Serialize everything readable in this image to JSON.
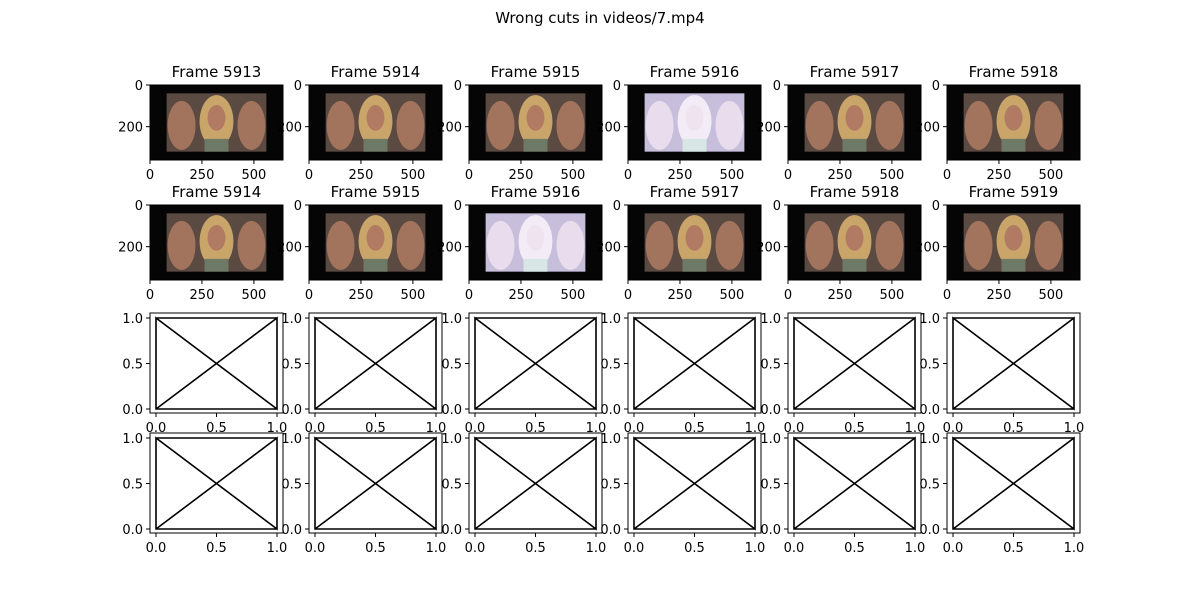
{
  "chart_data": {
    "type": "image-grid",
    "title": "Wrong cuts in videos/7.mp4",
    "rows": [
      {
        "kind": "image",
        "frames": [
          {
            "title": "Frame 5913",
            "tint": "normal"
          },
          {
            "title": "Frame 5914",
            "tint": "normal"
          },
          {
            "title": "Frame 5915",
            "tint": "normal"
          },
          {
            "title": "Frame 5916",
            "tint": "washed"
          },
          {
            "title": "Frame 5917",
            "tint": "normal"
          },
          {
            "title": "Frame 5918",
            "tint": "normal"
          }
        ],
        "xticks": [
          "0",
          "250",
          "500"
        ],
        "yticks": [
          "0",
          "200"
        ]
      },
      {
        "kind": "image",
        "frames": [
          {
            "title": "Frame 5914",
            "tint": "normal"
          },
          {
            "title": "Frame 5915",
            "tint": "normal"
          },
          {
            "title": "Frame 5916",
            "tint": "washed"
          },
          {
            "title": "Frame 5917",
            "tint": "normal"
          },
          {
            "title": "Frame 5918",
            "tint": "normal"
          },
          {
            "title": "Frame 5919",
            "tint": "normal"
          }
        ],
        "xticks": [
          "0",
          "250",
          "500"
        ],
        "yticks": [
          "0",
          "200"
        ]
      },
      {
        "kind": "placeholder",
        "count": 6,
        "xticks": [
          "0.0",
          "0.5",
          "1.0"
        ],
        "yticks": [
          "0.0",
          "0.5",
          "1.0"
        ]
      },
      {
        "kind": "placeholder",
        "count": 6,
        "xticks": [
          "0.0",
          "0.5",
          "1.0"
        ],
        "yticks": [
          "0.0",
          "0.5",
          "1.0"
        ]
      }
    ],
    "image_xlim": [
      0,
      640
    ],
    "image_ylim": [
      0,
      360
    ],
    "placeholder_xlim": [
      0,
      1
    ],
    "placeholder_ylim": [
      0,
      1
    ]
  },
  "colors": {
    "frame_border": "#000000",
    "letterbox": "#050505",
    "scene_normal": "#5a4a42",
    "scene_washed": "#c6bedb",
    "skin_normal": "#b07b62",
    "skin_washed": "#efe3f0",
    "hair_normal": "#c9a56a",
    "hair_washed": "#f3ecf6"
  }
}
